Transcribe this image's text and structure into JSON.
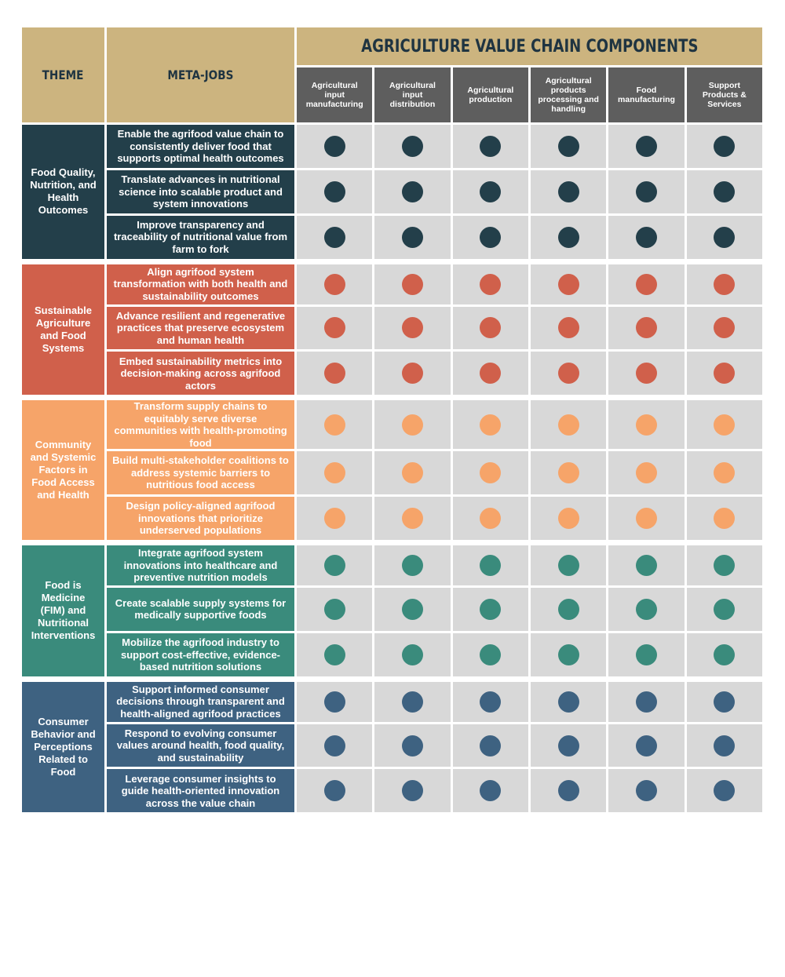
{
  "header": {
    "theme_label": "THEME",
    "metajobs_label": "META-JOBS",
    "components_title": "AGRICULTURE VALUE CHAIN COMPONENTS",
    "columns": [
      "Agricultural input manufacturing",
      "Agricultural input distribution",
      "Agricultural production",
      "Agricultural products processing and handling",
      "Food manufacturing",
      "Support Products & Services"
    ]
  },
  "colors": {
    "header_tan": "#ccb47f",
    "column_header_gray": "#5e5e5e",
    "dot_cell_bg": "#d8d8d8"
  },
  "themes": [
    {
      "name": "Food Quality, Nutrition, and Health Outcomes",
      "color": "#233f4a",
      "dot_color": "#233f4a",
      "metajobs": [
        "Enable the agrifood value chain to consistently deliver food that supports optimal health outcomes",
        "Translate advances in nutritional science into scalable product and system innovations",
        "Improve transparency and traceability of nutritional value from farm to fork"
      ],
      "marks": [
        [
          1,
          1,
          1,
          1,
          1,
          1
        ],
        [
          1,
          1,
          1,
          1,
          1,
          1
        ],
        [
          1,
          1,
          1,
          1,
          1,
          1
        ]
      ]
    },
    {
      "name": "Sustainable Agriculture and Food Systems",
      "color": "#d0604b",
      "dot_color": "#d0604b",
      "metajobs": [
        "Align agrifood system transformation with both health and sustainability outcomes",
        "Advance resilient and regenerative practices that preserve ecosystem and human health",
        "Embed sustainability metrics into decision-making across agrifood actors"
      ],
      "marks": [
        [
          1,
          1,
          1,
          1,
          1,
          1
        ],
        [
          1,
          1,
          1,
          1,
          1,
          1
        ],
        [
          1,
          1,
          1,
          1,
          1,
          1
        ]
      ]
    },
    {
      "name": "Community and Systemic Factors in Food Access and Health",
      "color": "#f6a469",
      "dot_color": "#f6a469",
      "metajobs": [
        "Transform supply chains to equitably serve diverse communities with health-promoting food",
        "Build multi-stakeholder coalitions to address systemic barriers to nutritious food access",
        "Design policy-aligned agrifood innovations that prioritize underserved populations"
      ],
      "marks": [
        [
          1,
          1,
          1,
          1,
          1,
          1
        ],
        [
          1,
          1,
          1,
          1,
          1,
          1
        ],
        [
          1,
          1,
          1,
          1,
          1,
          1
        ]
      ]
    },
    {
      "name": "Food is Medicine (FIM) and Nutritional Interventions",
      "color": "#3a8b7c",
      "dot_color": "#3a8b7c",
      "metajobs": [
        "Integrate agrifood system innovations into healthcare and preventive nutrition models",
        "Create scalable supply systems for medically supportive foods",
        "Mobilize the agrifood industry to support cost-effective, evidence-based nutrition solutions"
      ],
      "marks": [
        [
          1,
          1,
          1,
          1,
          1,
          1
        ],
        [
          1,
          1,
          1,
          1,
          1,
          1
        ],
        [
          1,
          1,
          1,
          1,
          1,
          1
        ]
      ]
    },
    {
      "name": "Consumer Behavior and Perceptions Related to Food",
      "color": "#3e6281",
      "dot_color": "#3e6281",
      "metajobs": [
        "Support informed consumer decisions through transparent and health-aligned agrifood practices",
        "Respond to evolving consumer values around health, food quality, and sustainability",
        "Leverage consumer insights to guide health-oriented innovation across the value chain"
      ],
      "marks": [
        [
          1,
          1,
          1,
          1,
          1,
          1
        ],
        [
          1,
          1,
          1,
          1,
          1,
          1
        ],
        [
          1,
          1,
          1,
          1,
          1,
          1
        ]
      ]
    }
  ]
}
